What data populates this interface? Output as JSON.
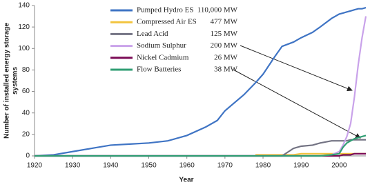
{
  "chart_data": {
    "type": "line",
    "xlabel": "Year",
    "ylabel": [
      "Number of installed energy storage",
      "systems"
    ],
    "x": [
      1920,
      1925,
      1930,
      1935,
      1940,
      1945,
      1950,
      1955,
      1960,
      1965,
      1968,
      1970,
      1975,
      1978,
      1980,
      1983,
      1985,
      1988,
      1990,
      1993,
      1995,
      1998,
      2000,
      2001,
      2002,
      2003,
      2004,
      2005,
      2006,
      2007
    ],
    "series": [
      {
        "name": "Pumped Hydro ES",
        "capacity": "110,000 MW",
        "color": "#3f74c4",
        "values": [
          0,
          1,
          4,
          7,
          10,
          11,
          12,
          14,
          19,
          27,
          33,
          42,
          57,
          68,
          76,
          92,
          102,
          106,
          110,
          115,
          120,
          128,
          132,
          133,
          134,
          135,
          136,
          137,
          137,
          138
        ]
      },
      {
        "name": "Compressed Air ES",
        "capacity": "477 MW",
        "color": "#f2c33c",
        "values": [
          null,
          null,
          null,
          null,
          null,
          null,
          null,
          null,
          null,
          null,
          null,
          null,
          null,
          1,
          1,
          1,
          1,
          1,
          2,
          2,
          2,
          2,
          2,
          2,
          2,
          2,
          2,
          2,
          2,
          2
        ]
      },
      {
        "name": "Lead Acid",
        "capacity": "125 MW",
        "color": "#737383",
        "values": [
          0,
          0,
          0,
          0,
          0,
          0,
          0,
          0,
          0,
          0,
          0,
          0,
          0,
          0,
          0,
          0,
          0,
          7,
          9,
          10,
          12,
          14,
          14,
          14,
          14,
          15,
          15,
          15,
          15,
          15
        ]
      },
      {
        "name": "Sodium Sulphur",
        "capacity": "200 MW",
        "color": "#c9a2ea",
        "values": [
          0,
          0,
          0,
          0,
          0,
          0,
          0,
          0,
          0,
          0,
          0,
          0,
          0,
          0,
          0,
          0,
          0,
          0,
          0,
          0,
          0,
          1,
          4,
          10,
          18,
          30,
          55,
          85,
          110,
          130
        ]
      },
      {
        "name": "Nickel Cadmium",
        "capacity": "26 MW",
        "color": "#7a0a55",
        "values": [
          0,
          0,
          0,
          0,
          0,
          0,
          0,
          0,
          0,
          0,
          0,
          0,
          0,
          0,
          0,
          0,
          0,
          0,
          0,
          0,
          0,
          0,
          0,
          1,
          1,
          1,
          2,
          2,
          2,
          2
        ]
      },
      {
        "name": "Flow Batteries",
        "capacity": "38 MW",
        "color": "#2f9e73",
        "values": [
          0,
          0,
          0,
          0,
          0,
          0,
          0,
          0,
          0,
          0,
          0,
          0,
          0,
          0,
          0,
          0,
          0,
          0,
          0,
          0,
          0,
          1,
          2,
          8,
          12,
          14,
          16,
          17,
          18,
          19
        ]
      }
    ],
    "xlim": [
      1920,
      2007
    ],
    "xticks": [
      1920,
      1930,
      1940,
      1950,
      1960,
      1970,
      1980,
      1990,
      2000
    ],
    "ylim": [
      0,
      140
    ],
    "yticks": [
      0,
      20,
      40,
      60,
      80,
      100,
      120,
      140
    ]
  }
}
